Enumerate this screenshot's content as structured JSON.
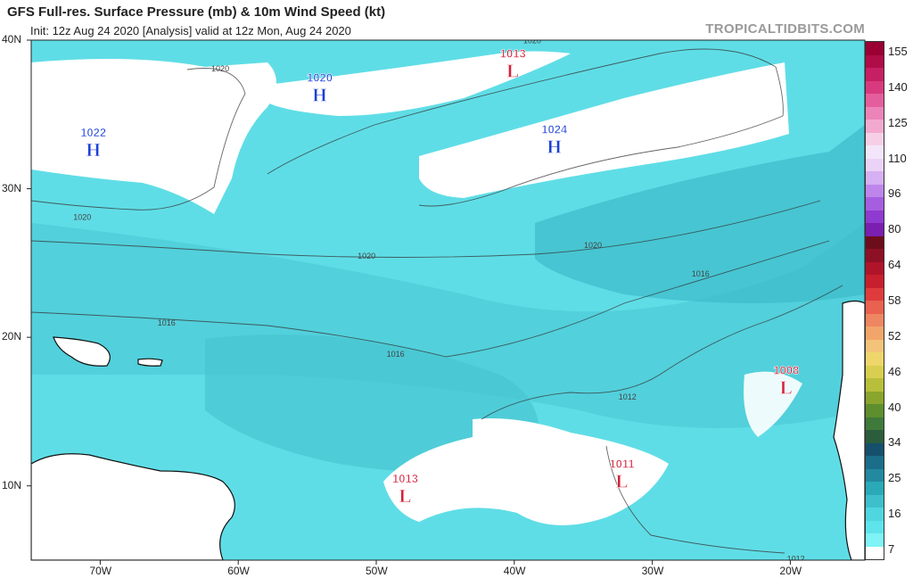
{
  "header": {
    "title": "GFS Full-res. Surface Pressure (mb) & 10m Wind Speed (kt)",
    "subtitle": "Init: 12z Aug 24 2020   [Analysis]   valid at 12z Mon, Aug 24 2020",
    "brand": "TROPICALTIDBITS.COM"
  },
  "axes": {
    "lat_labels": [
      "40N",
      "30N",
      "20N",
      "10N"
    ],
    "lon_labels": [
      "70W",
      "60W",
      "50W",
      "40W",
      "30W",
      "20W"
    ]
  },
  "pressure_centers": [
    {
      "type": "H",
      "value": "1022",
      "lon": -70.5,
      "lat": 32.8,
      "color": "#1c3fd6"
    },
    {
      "type": "H",
      "value": "1020",
      "lon": -54.1,
      "lat": 36.5,
      "color": "#1c3fd6"
    },
    {
      "type": "H",
      "value": "1024",
      "lon": -37.1,
      "lat": 33.0,
      "color": "#1c3fd6"
    },
    {
      "type": "L",
      "value": "1013",
      "lon": -40.1,
      "lat": 38.1,
      "color": "#d4203a"
    },
    {
      "type": "L",
      "value": "1008",
      "lon": -20.3,
      "lat": 16.8,
      "color": "#d4203a"
    },
    {
      "type": "L",
      "value": "1011",
      "lon": -32.2,
      "lat": 10.5,
      "color": "#d4203a"
    },
    {
      "type": "L",
      "value": "1013",
      "lon": -47.9,
      "lat": 9.5,
      "color": "#d4203a"
    }
  ],
  "isobar_labels": [
    {
      "text": "1020",
      "lon": -61.3,
      "lat": 37.9
    },
    {
      "text": "1020",
      "lon": -38.7,
      "lat": 39.8
    },
    {
      "text": "1020",
      "lon": -71.3,
      "lat": 27.9
    },
    {
      "text": "1020",
      "lon": -50.7,
      "lat": 25.3
    },
    {
      "text": "1020",
      "lon": -34.3,
      "lat": 26.0
    },
    {
      "text": "1016",
      "lon": -65.2,
      "lat": 20.8
    },
    {
      "text": "1016",
      "lon": -48.6,
      "lat": 18.7
    },
    {
      "text": "1016",
      "lon": -26.5,
      "lat": 24.1
    },
    {
      "text": "1012",
      "lon": -31.8,
      "lat": 15.8
    },
    {
      "text": "1012",
      "lon": -19.6,
      "lat": 4.9
    }
  ],
  "colorbar": {
    "unit": "kt",
    "ticks": [
      "155",
      "140",
      "125",
      "110",
      "96",
      "80",
      "64",
      "58",
      "52",
      "46",
      "40",
      "34",
      "25",
      "16",
      "7"
    ],
    "colors": [
      "#ffffff",
      "#7ff3f6",
      "#5fe4ec",
      "#4fd6df",
      "#3ebfcc",
      "#2aa9b8",
      "#2289a0",
      "#1a6e8a",
      "#14506c",
      "#2b5d3c",
      "#3f7a3a",
      "#5d8f2e",
      "#8aa52c",
      "#b8bf3a",
      "#d8cf50",
      "#efd66a",
      "#f3c37a",
      "#f2a56a",
      "#ef8662",
      "#e9614f",
      "#df3b3d",
      "#c81f2e",
      "#b0142a",
      "#8e1024",
      "#6c0d1c",
      "#7a1fb0",
      "#8f3ad0",
      "#a65ee0",
      "#be86ec",
      "#d6b0f2",
      "#ead3f7",
      "#f4e6fa",
      "#f6cfe6",
      "#f2a9d0",
      "#ec84b9",
      "#e45e9d",
      "#d83a7f",
      "#c71f63",
      "#b00c48",
      "#9a0034"
    ]
  }
}
